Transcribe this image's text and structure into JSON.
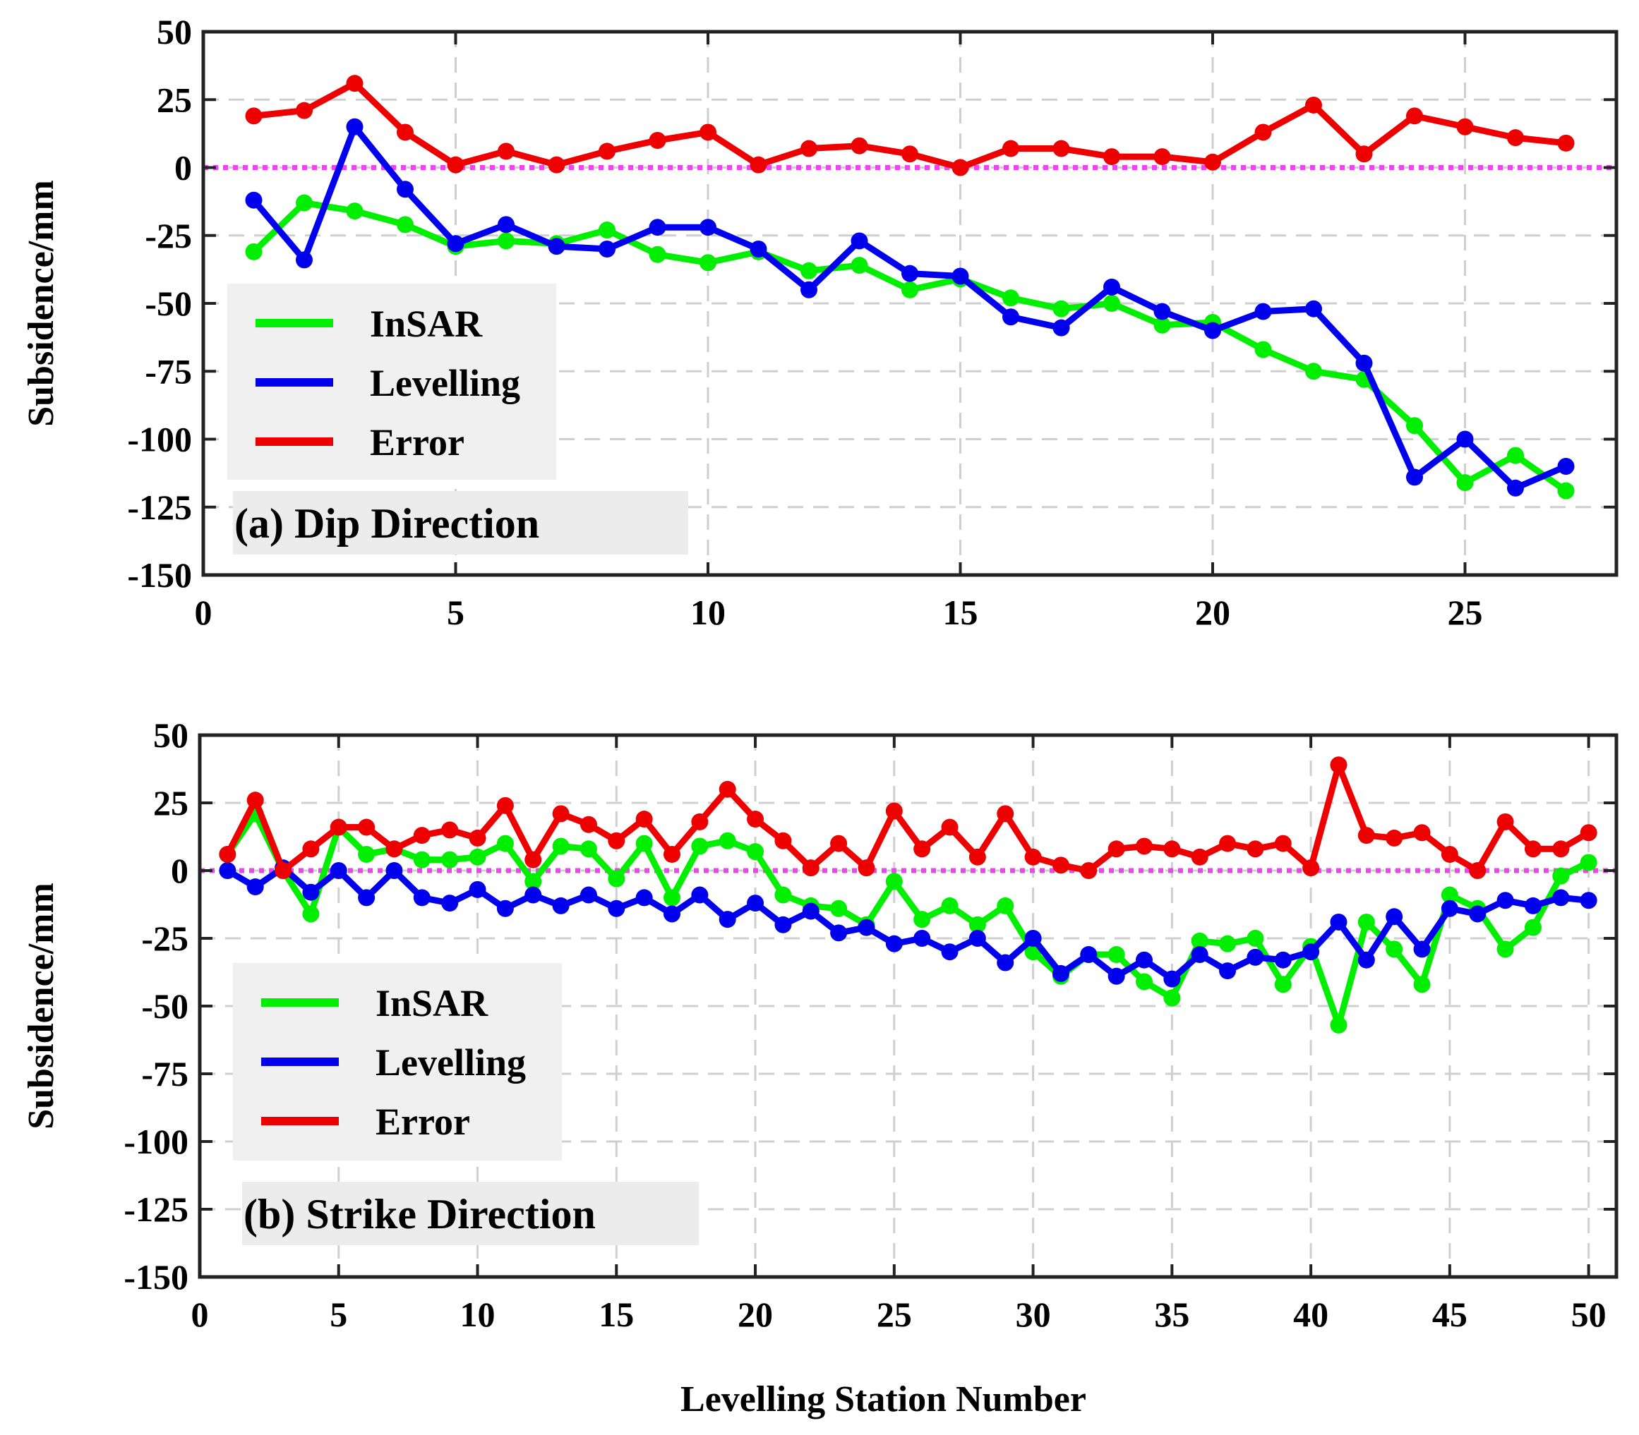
{
  "chart_data": [
    {
      "type": "line",
      "title": "(a) Dip Direction",
      "ylabel": "Subsidence/mm",
      "xlabel": "",
      "xlim": [
        0,
        28
      ],
      "ylim": [
        -150,
        50
      ],
      "xticks": [
        0,
        5,
        10,
        15,
        20,
        25
      ],
      "yticks": [
        50,
        25,
        0,
        -25,
        -50,
        -75,
        -100,
        -125,
        -150
      ],
      "grid": true,
      "legend": "middle-left",
      "reference_line": 0,
      "x": [
        1,
        2,
        3,
        4,
        5,
        6,
        7,
        8,
        9,
        10,
        11,
        12,
        13,
        14,
        15,
        16,
        17,
        18,
        19,
        20,
        21,
        22,
        23,
        24,
        25,
        26,
        27
      ],
      "series": [
        {
          "name": "InSAR",
          "color": "#00ee00",
          "values": [
            -31,
            -13,
            -16,
            -21,
            -29,
            -27,
            -28,
            -23,
            -32,
            -35,
            -31,
            -38,
            -36,
            -45,
            -41,
            -48,
            -52,
            -50,
            -58,
            -57,
            -67,
            -75,
            -78,
            -95,
            -116,
            -106,
            -119
          ]
        },
        {
          "name": "Levelling",
          "color": "#0000ee",
          "values": [
            -12,
            -34,
            15,
            -8,
            -28,
            -21,
            -29,
            -30,
            -22,
            -22,
            -30,
            -45,
            -27,
            -39,
            -40,
            -55,
            -59,
            -44,
            -53,
            -60,
            -53,
            -52,
            -72,
            -114,
            -100,
            -118,
            -110
          ]
        },
        {
          "name": "Error",
          "color": "#ee0000",
          "values": [
            19,
            21,
            31,
            13,
            1,
            6,
            1,
            6,
            10,
            13,
            1,
            7,
            8,
            5,
            0,
            7,
            7,
            4,
            4,
            2,
            13,
            23,
            5,
            19,
            15,
            11,
            9
          ]
        }
      ]
    },
    {
      "type": "line",
      "title": "(b) Strike Direction",
      "ylabel": "Subsidence/mm",
      "xlabel": "Levelling Station Number",
      "xlim": [
        0,
        51
      ],
      "ylim": [
        -150,
        50
      ],
      "xticks": [
        0,
        5,
        10,
        15,
        20,
        25,
        30,
        35,
        40,
        45,
        50
      ],
      "yticks": [
        50,
        25,
        0,
        -25,
        -50,
        -75,
        -100,
        -125,
        -150
      ],
      "grid": true,
      "legend": "middle-left",
      "reference_line": 0,
      "x": [
        1,
        2,
        3,
        4,
        5,
        6,
        7,
        8,
        9,
        10,
        11,
        12,
        13,
        14,
        15,
        16,
        17,
        18,
        19,
        20,
        21,
        22,
        23,
        24,
        25,
        26,
        27,
        28,
        29,
        30,
        31,
        32,
        33,
        34,
        35,
        36,
        37,
        38,
        39,
        40,
        41,
        42,
        43,
        44,
        45,
        46,
        47,
        48,
        49,
        50
      ],
      "series": [
        {
          "name": "InSAR",
          "color": "#00ee00",
          "values": [
            6,
            21,
            0,
            -16,
            16,
            6,
            8,
            4,
            4,
            5,
            10,
            -4,
            9,
            8,
            -3,
            10,
            -10,
            9,
            11,
            7,
            -9,
            -13,
            -14,
            -20,
            -4,
            -18,
            -13,
            -20,
            -13,
            -30,
            -39,
            -31,
            -31,
            -41,
            -47,
            -26,
            -27,
            -25,
            -42,
            -28,
            -57,
            -19,
            -29,
            -42,
            -9,
            -14,
            -29,
            -21,
            -2,
            3
          ]
        },
        {
          "name": "Levelling",
          "color": "#0000ee",
          "values": [
            0,
            -6,
            1,
            -8,
            0,
            -10,
            0,
            -10,
            -12,
            -7,
            -14,
            -9,
            -13,
            -9,
            -14,
            -10,
            -16,
            -9,
            -18,
            -12,
            -20,
            -15,
            -23,
            -21,
            -27,
            -25,
            -30,
            -25,
            -34,
            -25,
            -38,
            -31,
            -39,
            -33,
            -40,
            -31,
            -37,
            -32,
            -33,
            -30,
            -19,
            -33,
            -17,
            -29,
            -14,
            -16,
            -11,
            -13,
            -10,
            -11
          ]
        },
        {
          "name": "Error",
          "color": "#ee0000",
          "values": [
            6,
            26,
            0,
            8,
            16,
            16,
            8,
            13,
            15,
            12,
            24,
            4,
            21,
            17,
            11,
            19,
            6,
            18,
            30,
            19,
            11,
            1,
            10,
            1,
            22,
            8,
            16,
            5,
            21,
            5,
            2,
            0,
            8,
            9,
            8,
            5,
            10,
            8,
            10,
            1,
            39,
            13,
            12,
            14,
            6,
            0,
            18,
            8,
            8,
            14
          ]
        }
      ]
    }
  ]
}
